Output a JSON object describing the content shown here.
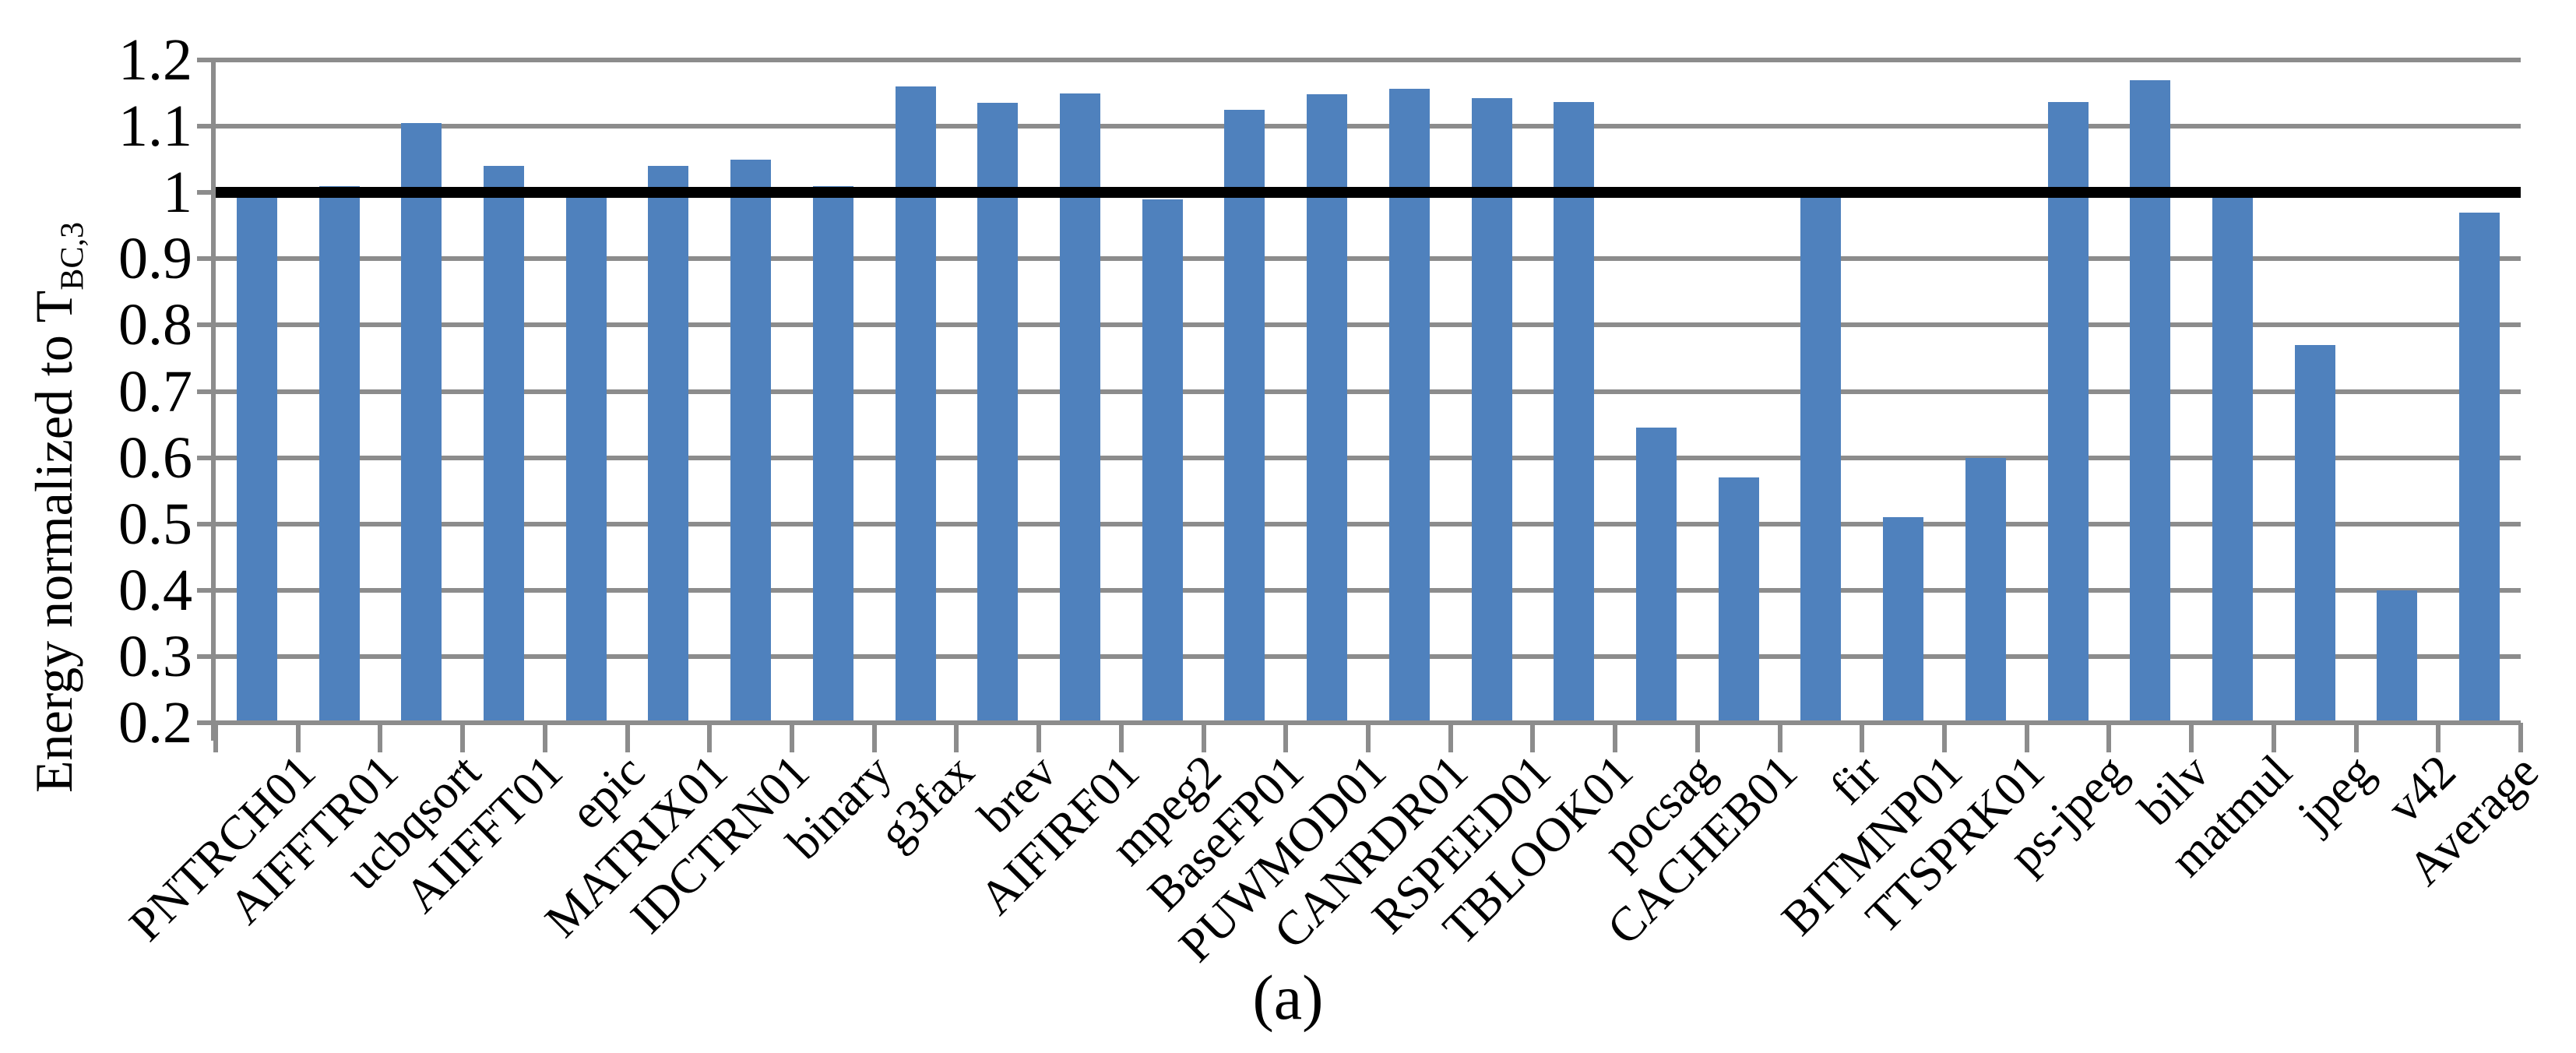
{
  "figure": {
    "caption": "(a)",
    "background": "#ffffff"
  },
  "chart_data": {
    "type": "bar",
    "title": "",
    "xlabel": "",
    "ylabel_main": "Energy normalized to T",
    "ylabel_subscript": "BC,3",
    "ylim": [
      0.2,
      1.2
    ],
    "ytick_step": 0.1,
    "ytick_labels": [
      "0.2",
      "0.3",
      "0.4",
      "0.5",
      "0.6",
      "0.7",
      "0.8",
      "0.9",
      "1",
      "1.1",
      "1.2"
    ],
    "grid": true,
    "legend": "none",
    "reference_line": 1.0,
    "bar_color": "#4F81BD",
    "gridline_color": "#8C8C8C",
    "axis_color": "#8C8C8C",
    "reference_line_color": "#000000",
    "categories": [
      "PNTRCH01",
      "AIFFTR01",
      "ucbqsort",
      "AIIFFT01",
      "epic",
      "MATRIX01",
      "IDCTRN01",
      "binary",
      "g3fax",
      "brev",
      "AIFIRF01",
      "mpeg2",
      "BaseFP01",
      "PUWMOD01",
      "CANRDR01",
      "RSPEED01",
      "TBLOOK01",
      "pocsag",
      "CACHEB01",
      "fir",
      "BITMNP01",
      "TTSPRK01",
      "ps-jpeg",
      "bilv",
      "matmul",
      "jpeg",
      "v42",
      "Average"
    ],
    "values": [
      1.0,
      1.01,
      1.105,
      1.04,
      1.0,
      1.04,
      1.05,
      1.01,
      1.16,
      1.135,
      1.15,
      0.99,
      1.125,
      1.148,
      1.157,
      1.143,
      1.136,
      0.645,
      0.57,
      1.0,
      0.51,
      0.6,
      1.137,
      1.17,
      1.0,
      0.77,
      0.4,
      0.97
    ]
  }
}
